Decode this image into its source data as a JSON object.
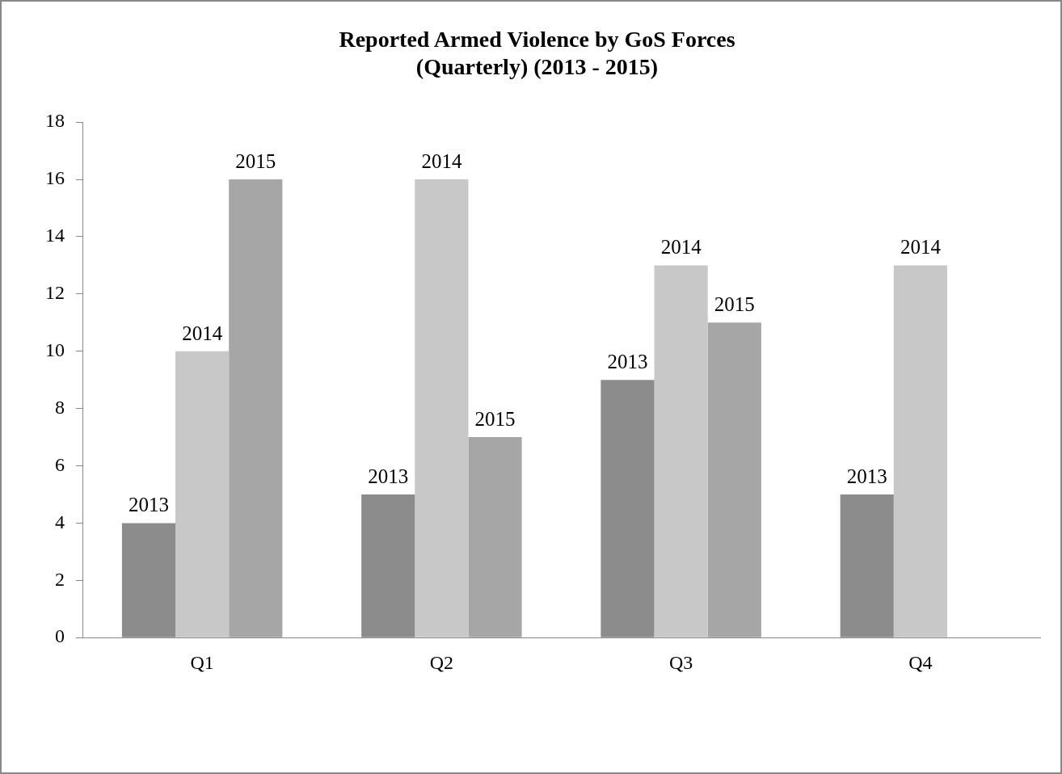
{
  "chart_data": {
    "type": "bar",
    "title": "Reported Armed Violence by GoS Forces\n(Quarterly) (2013 - 2015)",
    "categories": [
      "Q1",
      "Q2",
      "Q3",
      "Q4"
    ],
    "series": [
      {
        "name": "2013",
        "color": "#8c8c8c",
        "values": [
          4,
          5,
          9,
          5
        ]
      },
      {
        "name": "2014",
        "color": "#c8c8c8",
        "values": [
          10,
          16,
          13,
          13
        ]
      },
      {
        "name": "2015",
        "color": "#a6a6a6",
        "values": [
          16,
          7,
          11,
          null
        ]
      }
    ],
    "ylim": [
      0,
      18
    ],
    "yticks": [
      0,
      2,
      4,
      6,
      8,
      10,
      12,
      14,
      16,
      18
    ],
    "grid": false,
    "legend": false
  }
}
